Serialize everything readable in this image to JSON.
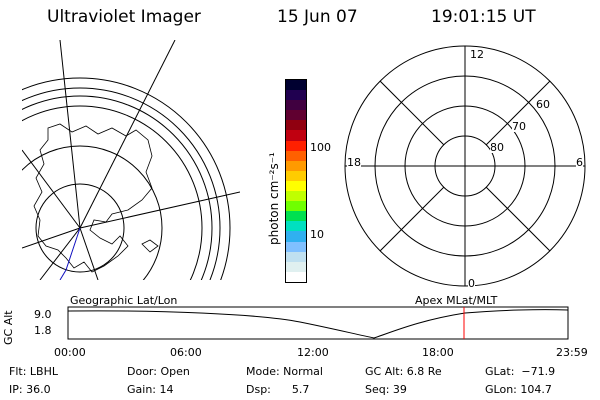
{
  "header": {
    "title": "Ultraviolet Imager",
    "date": "15 Jun 07",
    "time": "19:01:15 UT"
  },
  "colorbar": {
    "unit_label": "photon cm⁻²s⁻¹",
    "ticks": [
      "100",
      "10"
    ],
    "colors": [
      "#000030",
      "#200050",
      "#400040",
      "#600030",
      "#900010",
      "#c00010",
      "#ff2000",
      "#ff6000",
      "#ff9a00",
      "#ffcc00",
      "#ffff00",
      "#c0ff00",
      "#70ff00",
      "#00e050",
      "#00e0c0",
      "#30b0f0",
      "#80c0ff",
      "#c0e0f0",
      "#e0f0f0",
      "#ffffff"
    ]
  },
  "geo_plot": {
    "label": "Geographic Lat/Lon"
  },
  "polar_plot": {
    "label": "Apex MLat/MLT",
    "mlt_labels": {
      "top": "12",
      "left": "18",
      "right": "6",
      "bottom": "0"
    },
    "lat_labels": [
      "60",
      "70",
      "80"
    ]
  },
  "altitude_panel": {
    "axis_label": "GC Alt",
    "ticks": [
      "9.0",
      "1.8"
    ],
    "time_labels": [
      "00:00",
      "06:00",
      "12:00",
      "18:00",
      "23:59"
    ],
    "current_time_fraction": 0.792,
    "marker_color": "#ff0000"
  },
  "info": {
    "flt": "Flt: LBHL",
    "ip": "IP: 36.0",
    "door": "Door: Open",
    "gain": "Gain: 14",
    "mode": "Mode: Normal",
    "dsp": "Dsp:      5.7",
    "gc_alt": "GC Alt: 6.8 Re",
    "seq": "Seq: 39",
    "glat": "GLat:  −71.9",
    "glon": "GLon: 104.7"
  }
}
